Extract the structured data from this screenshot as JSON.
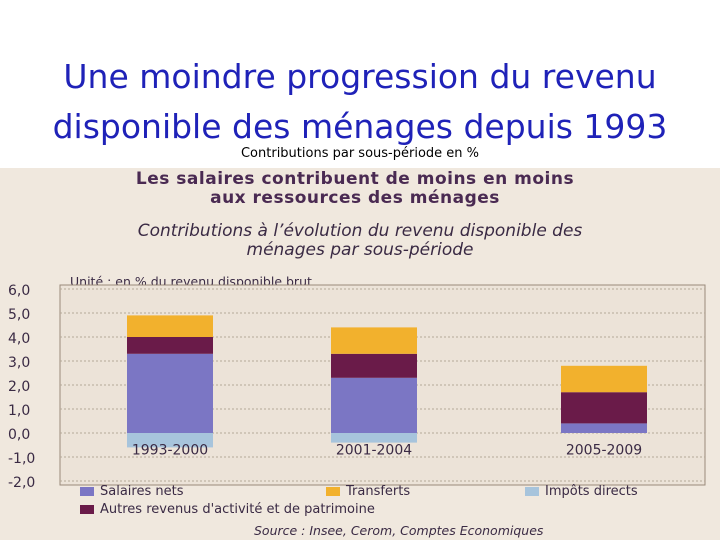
{
  "slide": {
    "title_line1": "Une moindre progression du revenu",
    "title_line2": "disponible des ménages depuis 1993",
    "subtitle": "Contributions par sous-période en %"
  },
  "figure": {
    "title_line1": "Les salaires contribuent de moins en moins",
    "title_line2": "aux ressources des ménages",
    "subtitle_line1": "Contributions à l’évolution du revenu disponible des",
    "subtitle_line2": "ménages par sous-période",
    "unit": "Unité : en % du revenu disponible brut",
    "source": "Source : Insee, Cerom, Comptes Economiques"
  },
  "chart_data": {
    "type": "bar",
    "stacked": true,
    "categories": [
      "1993-2000",
      "2001-2004",
      "2005-2009"
    ],
    "series": [
      {
        "name": "Salaires nets",
        "color": "#7b76c4",
        "values": [
          3.3,
          2.3,
          0.4
        ]
      },
      {
        "name": "Autres revenus d'activité et de patrimoine",
        "color": "#6a1b49",
        "values": [
          0.7,
          1.0,
          1.3
        ]
      },
      {
        "name": "Transferts",
        "color": "#f2b12d",
        "values": [
          0.9,
          1.1,
          1.1
        ]
      },
      {
        "name": "Impôts directs",
        "color": "#a7c4dc",
        "values": [
          -0.6,
          -0.4,
          0.0
        ]
      }
    ],
    "yticks": [
      "6,0",
      "5,0",
      "4,0",
      "3,0",
      "2,0",
      "1,0",
      "0,0",
      "-1,0",
      "-2,0"
    ],
    "ylim": [
      -2,
      6
    ],
    "grid": true,
    "legend_position": "bottom"
  }
}
